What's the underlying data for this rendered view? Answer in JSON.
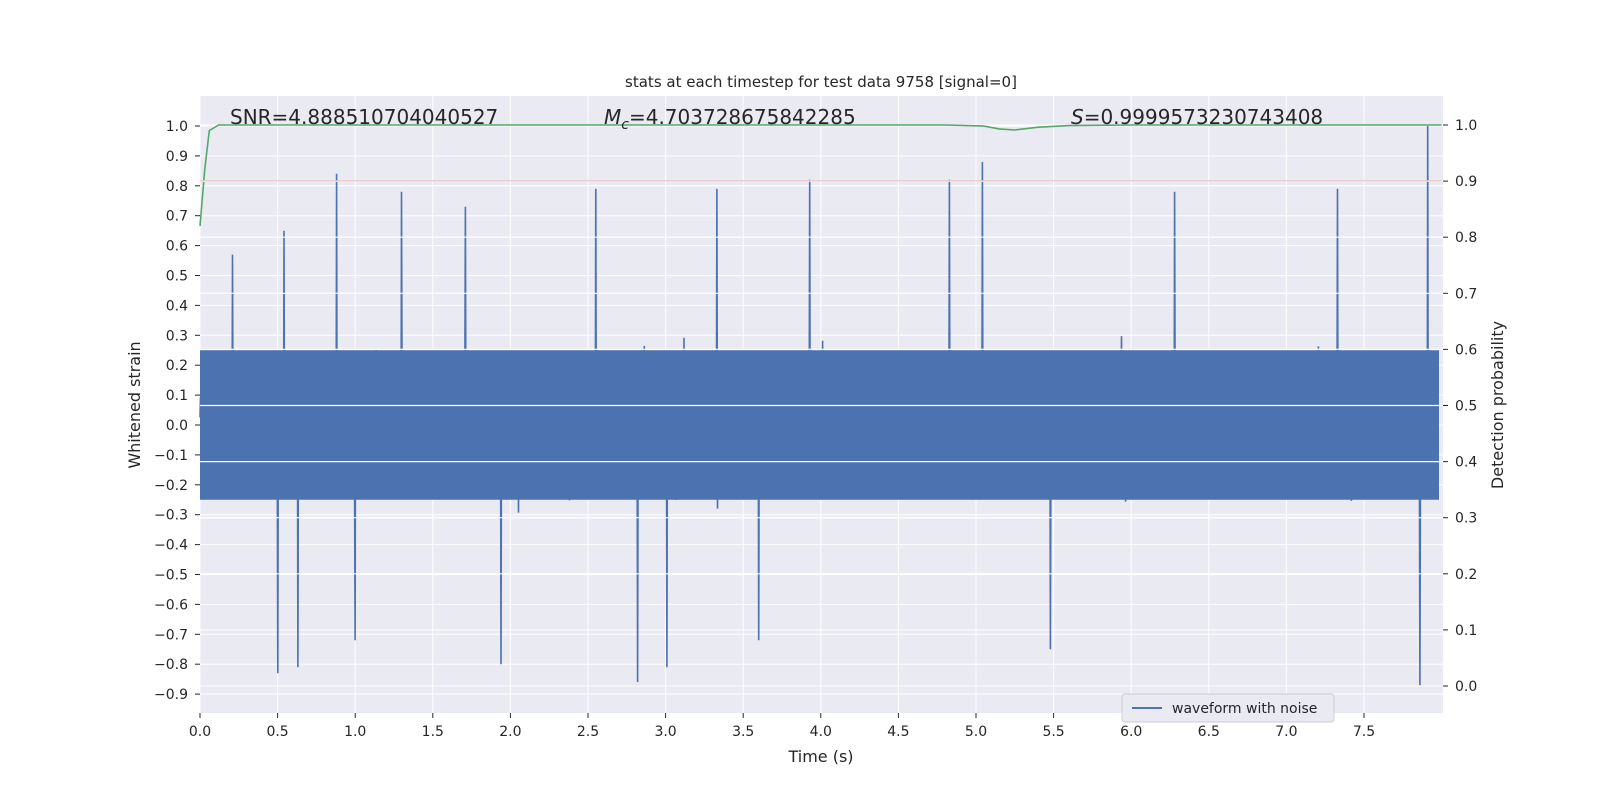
{
  "chart_data": {
    "type": "line",
    "title": "stats at each timestep for test data 9758 [signal=0]",
    "xlabel": "Time (s)",
    "ylabel": "Whitened strain",
    "y2label": "Detection probability",
    "xlim": [
      0.0,
      8.0
    ],
    "ylim": [
      -1.0,
      1.07
    ],
    "y2lim": [
      -0.04,
      1.06
    ],
    "xticks": [
      "0.0",
      "0.5",
      "1.0",
      "1.5",
      "2.0",
      "2.5",
      "3.0",
      "3.5",
      "4.0",
      "4.5",
      "5.0",
      "5.5",
      "6.0",
      "6.5",
      "7.0",
      "7.5"
    ],
    "yticks": [
      "1.0",
      "0.9",
      "0.8",
      "0.7",
      "0.6",
      "0.5",
      "0.4",
      "0.3",
      "0.2",
      "0.1",
      "0.0",
      "-0.1",
      "-0.2",
      "-0.3",
      "-0.4",
      "-0.5",
      "-0.6",
      "-0.7",
      "-0.8",
      "-0.9"
    ],
    "y2ticks": [
      "1.0",
      "0.9",
      "0.8",
      "0.7",
      "0.6",
      "0.5",
      "0.4",
      "0.3",
      "0.2",
      "0.1",
      "0.0"
    ],
    "grid": true,
    "legend": {
      "position": "bottom-right",
      "entries": [
        "waveform with noise"
      ]
    },
    "annotations": {
      "snr": "SNR=4.888510704040527",
      "mc_symbol": "M",
      "mc_sub": "c",
      "mc_value": "=4.703728675842285",
      "s_symbol": "S",
      "s_value": "=0.9999573230743408"
    },
    "series": [
      {
        "name": "waveform with noise",
        "axis": "left",
        "color": "#4c72b0",
        "envelope": {
          "typical_range": [
            -0.5,
            0.5
          ],
          "dense_core_range": [
            -0.25,
            0.25
          ],
          "peaks": [
            {
              "x": 0.21,
              "y": 0.57
            },
            {
              "x": 0.54,
              "y": 0.65
            },
            {
              "x": 0.88,
              "y": 0.84
            },
            {
              "x": 1.3,
              "y": 0.78
            },
            {
              "x": 1.71,
              "y": 0.73
            },
            {
              "x": 2.55,
              "y": 0.79
            },
            {
              "x": 3.33,
              "y": 0.79
            },
            {
              "x": 3.93,
              "y": 0.82
            },
            {
              "x": 4.83,
              "y": 0.82
            },
            {
              "x": 5.04,
              "y": 0.88
            },
            {
              "x": 6.28,
              "y": 0.78
            },
            {
              "x": 7.33,
              "y": 0.79
            },
            {
              "x": 7.91,
              "y": 1.0
            }
          ],
          "troughs": [
            {
              "x": 0.5,
              "y": -0.83
            },
            {
              "x": 0.63,
              "y": -0.81
            },
            {
              "x": 1.0,
              "y": -0.72
            },
            {
              "x": 1.94,
              "y": -0.8
            },
            {
              "x": 2.82,
              "y": -0.86
            },
            {
              "x": 3.01,
              "y": -0.81
            },
            {
              "x": 3.6,
              "y": -0.72
            },
            {
              "x": 5.48,
              "y": -0.75
            },
            {
              "x": 7.86,
              "y": -0.87
            }
          ]
        }
      },
      {
        "name": "",
        "axis": "right",
        "color": "#c44e52",
        "x": [
          0.0,
          8.0
        ],
        "y": [
          0.9,
          0.9
        ]
      },
      {
        "name": "",
        "axis": "right",
        "color": "#55a868",
        "x": [
          0.0,
          0.03,
          0.06,
          0.12,
          1.0,
          3.0,
          4.8,
          5.05,
          5.15,
          5.25,
          5.4,
          5.6,
          6.0,
          7.5,
          8.0
        ],
        "y": [
          0.82,
          0.92,
          0.99,
          1.0,
          1.0,
          1.0,
          1.0,
          0.998,
          0.993,
          0.991,
          0.996,
          0.999,
          1.0,
          1.0,
          1.0
        ]
      }
    ]
  }
}
